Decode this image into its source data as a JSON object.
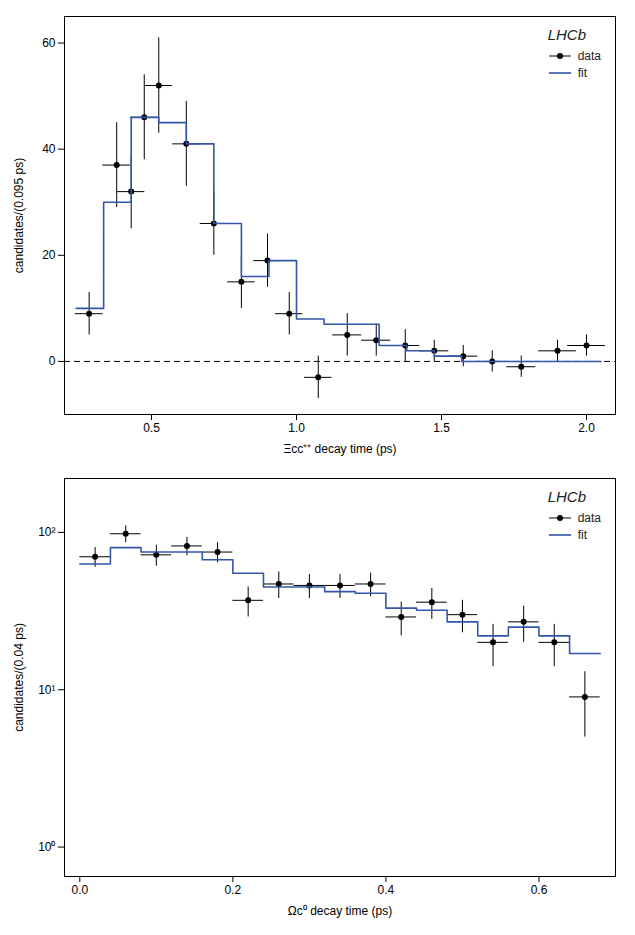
{
  "chart_data": [
    {
      "type": "errorbar",
      "xlabel": "Ξcc⁺⁺ decay time (ps)",
      "ylabel": "candidates/(0.095 ps)",
      "xlim": [
        0.2,
        2.1
      ],
      "ylim": [
        -10,
        65
      ],
      "xticks": [
        0.5,
        {
          "value": 1,
          "label": "1.0"
        },
        1.5,
        {
          "value": 2,
          "label": "2.0"
        }
      ],
      "yticks": [
        0,
        20,
        40,
        60
      ],
      "legend": "upper right",
      "annotations": [
        {
          "text": "LHCb"
        }
      ],
      "reference_lines": [
        {
          "y": 0,
          "color": "black",
          "line_style": "dashed"
        }
      ],
      "series": [
        {
          "name": "data",
          "type": "scatter",
          "color": "black",
          "marker": "circle",
          "x": [
            0.285,
            0.38,
            0.43,
            0.475,
            0.525,
            0.62,
            0.715,
            0.81,
            0.9,
            0.975,
            1.075,
            1.175,
            1.275,
            1.375,
            1.475,
            1.575,
            1.675,
            1.775,
            1.9,
            2.0
          ],
          "values": [
            9,
            37,
            32,
            46,
            52,
            41,
            26,
            15,
            19,
            9,
            -3,
            5,
            4,
            3,
            2,
            1,
            0,
            -1,
            2,
            3
          ],
          "xerr": [
            0.048,
            0.048,
            0.047,
            0.047,
            0.047,
            0.047,
            0.047,
            0.047,
            0.047,
            0.047,
            0.047,
            0.05,
            0.05,
            0.05,
            0.05,
            0.05,
            0.05,
            0.05,
            0.065,
            0.065
          ],
          "yerr": [
            4,
            8,
            7,
            8,
            9,
            8,
            6,
            5,
            5,
            4,
            4,
            4,
            3,
            3,
            2,
            2,
            2,
            2,
            2,
            2
          ]
        },
        {
          "name": "fit",
          "type": "step",
          "color": "#3355aa",
          "line_style": "solid",
          "bins": [
            0.24,
            0.335,
            0.43,
            0.525,
            0.62,
            0.715,
            0.81,
            0.905,
            1.0,
            1.095,
            1.19,
            1.285,
            1.38,
            1.475,
            1.57,
            1.665,
            1.76,
            1.855,
            1.95,
            2.05
          ],
          "values": [
            10,
            30,
            46,
            45,
            41,
            26,
            16,
            19,
            8,
            7,
            7,
            3,
            2,
            1,
            0,
            0,
            0,
            0,
            0
          ]
        }
      ]
    },
    {
      "type": "errorbar",
      "xlabel": "Ωc⁰ decay time (ps)",
      "ylabel": "candidates/(0.04 ps)",
      "log": "y",
      "xlim": [
        -0.02,
        0.7
      ],
      "ylim": [
        0.65,
        220
      ],
      "xticks": [
        {
          "value": 0,
          "label": "0.0"
        },
        0.2,
        0.4,
        0.6
      ],
      "yticks": [
        {
          "value": 1,
          "label": "10⁰"
        },
        {
          "value": 10,
          "label": "10¹"
        },
        {
          "value": 100,
          "label": "10²"
        }
      ],
      "legend": "upper right",
      "annotations": [
        {
          "text": "LHCb"
        }
      ],
      "series": [
        {
          "name": "data",
          "type": "scatter",
          "color": "black",
          "marker": "circle",
          "x": [
            0.02,
            0.06,
            0.1,
            0.14,
            0.18,
            0.22,
            0.26,
            0.3,
            0.34,
            0.38,
            0.42,
            0.46,
            0.5,
            0.54,
            0.58,
            0.62,
            0.66
          ],
          "values": [
            70,
            98,
            72,
            82,
            75,
            37,
            47,
            46,
            46,
            47,
            29,
            36,
            30,
            20,
            27,
            20,
            9
          ],
          "xerr": [
            0.02,
            0.02,
            0.02,
            0.02,
            0.02,
            0.02,
            0.02,
            0.02,
            0.02,
            0.02,
            0.02,
            0.02,
            0.02,
            0.02,
            0.02,
            0.02,
            0.02
          ],
          "yerr": [
            10,
            12,
            11,
            11,
            11,
            8,
            9,
            8,
            8,
            8,
            7,
            8,
            7,
            6,
            7,
            6,
            4
          ]
        },
        {
          "name": "fit",
          "type": "step",
          "color": "#3355aa",
          "line_style": "solid",
          "bins": [
            0.0,
            0.04,
            0.08,
            0.12,
            0.16,
            0.2,
            0.24,
            0.28,
            0.32,
            0.36,
            0.4,
            0.44,
            0.48,
            0.52,
            0.56,
            0.6,
            0.64,
            0.68
          ],
          "values": [
            63,
            80,
            75,
            75,
            67,
            55,
            45,
            45,
            42,
            41,
            33,
            32,
            27,
            22,
            25,
            22,
            17
          ]
        }
      ]
    }
  ]
}
